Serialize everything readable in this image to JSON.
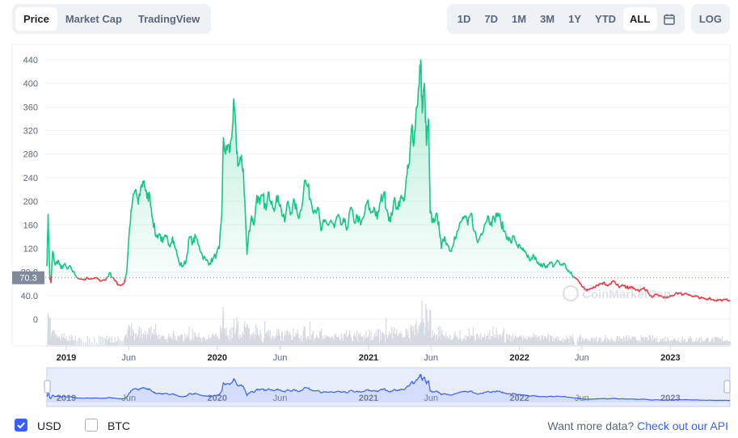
{
  "tabs": {
    "price": "Price",
    "market_cap": "Market Cap",
    "tradingview": "TradingView"
  },
  "ranges": [
    "1D",
    "7D",
    "1M",
    "3M",
    "1Y",
    "YTD",
    "ALL"
  ],
  "active_range": "ALL",
  "calendar_icon": "calendar-icon",
  "log_label": "LOG",
  "watermark": "CoinMarketCap",
  "footer": {
    "usd": "USD",
    "btc": "BTC",
    "more_text": "Want more data?",
    "more_link": "Check out our API"
  },
  "colors": {
    "up": "#16c784",
    "down": "#ea3943",
    "nav": "#3861fb",
    "current_label_bg": "#808a9d"
  },
  "chart_data": {
    "type": "line",
    "current_price_label": "70.3",
    "y_ticks": [
      0,
      40,
      80,
      120,
      160,
      200,
      240,
      280,
      320,
      360,
      400,
      440
    ],
    "y_tick_labels": [
      "0",
      "40.0",
      "80.0",
      "120",
      "160",
      "200",
      "240",
      "280",
      "320",
      "360",
      "400",
      "440"
    ],
    "ylim": [
      0,
      460
    ],
    "x_range": [
      "2018-11-15",
      "2023-05-25"
    ],
    "x_ticks": [
      {
        "date": "2019-01-01",
        "label": "2019",
        "bold": true
      },
      {
        "date": "2019-06-01",
        "label": "Jun",
        "bold": false
      },
      {
        "date": "2020-01-01",
        "label": "2020",
        "bold": true
      },
      {
        "date": "2020-06-01",
        "label": "Jun",
        "bold": false
      },
      {
        "date": "2021-01-01",
        "label": "2021",
        "bold": true
      },
      {
        "date": "2021-06-01",
        "label": "Jun",
        "bold": false
      },
      {
        "date": "2022-01-01",
        "label": "2022",
        "bold": true
      },
      {
        "date": "2022-06-01",
        "label": "Jun",
        "bold": false
      },
      {
        "date": "2023-01-01",
        "label": "2023",
        "bold": true
      }
    ],
    "reference_price": 70.3,
    "series": [
      {
        "points": [
          [
            "2018-11-15",
            90
          ],
          [
            "2018-11-18",
            178
          ],
          [
            "2018-11-22",
            70
          ],
          [
            "2018-11-25",
            62
          ],
          [
            "2018-11-29",
            115
          ],
          [
            "2018-12-05",
            92
          ],
          [
            "2018-12-12",
            100
          ],
          [
            "2018-12-19",
            86
          ],
          [
            "2018-12-27",
            93
          ],
          [
            "2019-01-03",
            85
          ],
          [
            "2019-01-12",
            88
          ],
          [
            "2019-01-22",
            75
          ],
          [
            "2019-02-05",
            68
          ],
          [
            "2019-02-25",
            68
          ],
          [
            "2019-03-20",
            68
          ],
          [
            "2019-04-05",
            66
          ],
          [
            "2019-04-15",
            78
          ],
          [
            "2019-04-25",
            70
          ],
          [
            "2019-05-05",
            58
          ],
          [
            "2019-05-20",
            60
          ],
          [
            "2019-05-27",
            80
          ],
          [
            "2019-06-03",
            155
          ],
          [
            "2019-06-10",
            200
          ],
          [
            "2019-06-18",
            220
          ],
          [
            "2019-06-24",
            195
          ],
          [
            "2019-07-02",
            228
          ],
          [
            "2019-07-08",
            235
          ],
          [
            "2019-07-15",
            205
          ],
          [
            "2019-07-22",
            210
          ],
          [
            "2019-07-29",
            170
          ],
          [
            "2019-08-06",
            140
          ],
          [
            "2019-08-14",
            145
          ],
          [
            "2019-08-22",
            130
          ],
          [
            "2019-08-30",
            140
          ],
          [
            "2019-09-07",
            125
          ],
          [
            "2019-09-15",
            140
          ],
          [
            "2019-09-22",
            120
          ],
          [
            "2019-10-01",
            95
          ],
          [
            "2019-10-10",
            90
          ],
          [
            "2019-10-18",
            100
          ],
          [
            "2019-10-26",
            140
          ],
          [
            "2019-11-03",
            130
          ],
          [
            "2019-11-10",
            140
          ],
          [
            "2019-11-18",
            125
          ],
          [
            "2019-11-26",
            108
          ],
          [
            "2019-12-05",
            100
          ],
          [
            "2019-12-14",
            95
          ],
          [
            "2019-12-22",
            103
          ],
          [
            "2019-12-30",
            110
          ],
          [
            "2020-01-06",
            120
          ],
          [
            "2020-01-12",
            180
          ],
          [
            "2020-01-16",
            308
          ],
          [
            "2020-01-21",
            280
          ],
          [
            "2020-01-26",
            295
          ],
          [
            "2020-02-01",
            285
          ],
          [
            "2020-02-07",
            330
          ],
          [
            "2020-02-11",
            365
          ],
          [
            "2020-02-16",
            300
          ],
          [
            "2020-02-21",
            260
          ],
          [
            "2020-02-27",
            270
          ],
          [
            "2020-03-04",
            255
          ],
          [
            "2020-03-09",
            180
          ],
          [
            "2020-03-13",
            110
          ],
          [
            "2020-03-18",
            150
          ],
          [
            "2020-03-24",
            175
          ],
          [
            "2020-03-30",
            160
          ],
          [
            "2020-04-06",
            210
          ],
          [
            "2020-04-13",
            195
          ],
          [
            "2020-04-20",
            210
          ],
          [
            "2020-04-28",
            185
          ],
          [
            "2020-05-05",
            215
          ],
          [
            "2020-05-12",
            200
          ],
          [
            "2020-05-20",
            190
          ],
          [
            "2020-05-27",
            210
          ],
          [
            "2020-06-04",
            185
          ],
          [
            "2020-06-12",
            165
          ],
          [
            "2020-06-20",
            200
          ],
          [
            "2020-06-28",
            180
          ],
          [
            "2020-07-06",
            200
          ],
          [
            "2020-07-14",
            175
          ],
          [
            "2020-07-22",
            185
          ],
          [
            "2020-07-30",
            235
          ],
          [
            "2020-08-07",
            225
          ],
          [
            "2020-08-15",
            200
          ],
          [
            "2020-08-23",
            185
          ],
          [
            "2020-08-31",
            190
          ],
          [
            "2020-09-08",
            150
          ],
          [
            "2020-09-16",
            165
          ],
          [
            "2020-09-24",
            160
          ],
          [
            "2020-10-02",
            168
          ],
          [
            "2020-10-10",
            155
          ],
          [
            "2020-10-18",
            175
          ],
          [
            "2020-10-26",
            160
          ],
          [
            "2020-11-03",
            165
          ],
          [
            "2020-11-11",
            155
          ],
          [
            "2020-11-19",
            190
          ],
          [
            "2020-11-27",
            165
          ],
          [
            "2020-12-05",
            175
          ],
          [
            "2020-12-13",
            160
          ],
          [
            "2020-12-21",
            175
          ],
          [
            "2020-12-29",
            200
          ],
          [
            "2021-01-06",
            180
          ],
          [
            "2021-01-14",
            190
          ],
          [
            "2021-01-22",
            170
          ],
          [
            "2021-01-30",
            200
          ],
          [
            "2021-02-07",
            215
          ],
          [
            "2021-02-15",
            185
          ],
          [
            "2021-02-23",
            165
          ],
          [
            "2021-03-03",
            200
          ],
          [
            "2021-03-11",
            190
          ],
          [
            "2021-03-19",
            205
          ],
          [
            "2021-03-27",
            200
          ],
          [
            "2021-04-04",
            245
          ],
          [
            "2021-04-10",
            265
          ],
          [
            "2021-04-16",
            330
          ],
          [
            "2021-04-21",
            300
          ],
          [
            "2021-04-27",
            360
          ],
          [
            "2021-05-03",
            395
          ],
          [
            "2021-05-07",
            440
          ],
          [
            "2021-05-11",
            350
          ],
          [
            "2021-05-16",
            400
          ],
          [
            "2021-05-21",
            295
          ],
          [
            "2021-05-26",
            340
          ],
          [
            "2021-05-30",
            180
          ],
          [
            "2021-06-05",
            165
          ],
          [
            "2021-06-12",
            175
          ],
          [
            "2021-06-20",
            165
          ],
          [
            "2021-06-26",
            120
          ],
          [
            "2021-07-04",
            140
          ],
          [
            "2021-07-12",
            125
          ],
          [
            "2021-07-20",
            115
          ],
          [
            "2021-07-28",
            140
          ],
          [
            "2021-08-05",
            150
          ],
          [
            "2021-08-13",
            165
          ],
          [
            "2021-08-21",
            175
          ],
          [
            "2021-08-29",
            160
          ],
          [
            "2021-09-06",
            180
          ],
          [
            "2021-09-14",
            150
          ],
          [
            "2021-09-22",
            130
          ],
          [
            "2021-09-30",
            145
          ],
          [
            "2021-10-08",
            160
          ],
          [
            "2021-10-16",
            175
          ],
          [
            "2021-10-24",
            165
          ],
          [
            "2021-11-01",
            170
          ],
          [
            "2021-11-09",
            180
          ],
          [
            "2021-11-17",
            165
          ],
          [
            "2021-11-25",
            150
          ],
          [
            "2021-12-03",
            140
          ],
          [
            "2021-12-11",
            130
          ],
          [
            "2021-12-19",
            140
          ],
          [
            "2021-12-27",
            125
          ],
          [
            "2022-01-04",
            120
          ],
          [
            "2022-01-12",
            115
          ],
          [
            "2022-01-20",
            105
          ],
          [
            "2022-01-28",
            100
          ],
          [
            "2022-02-05",
            108
          ],
          [
            "2022-02-13",
            95
          ],
          [
            "2022-02-21",
            90
          ],
          [
            "2022-03-01",
            95
          ],
          [
            "2022-03-09",
            88
          ],
          [
            "2022-03-17",
            95
          ],
          [
            "2022-03-25",
            90
          ],
          [
            "2022-04-02",
            100
          ],
          [
            "2022-04-10",
            92
          ],
          [
            "2022-04-18",
            95
          ],
          [
            "2022-04-26",
            85
          ],
          [
            "2022-05-04",
            78
          ],
          [
            "2022-05-12",
            72
          ]
        ]
      },
      {
        "points": [
          [
            "2022-05-20",
            68
          ],
          [
            "2022-05-28",
            60
          ],
          [
            "2022-06-05",
            55
          ],
          [
            "2022-06-13",
            48
          ],
          [
            "2022-06-21",
            52
          ],
          [
            "2022-06-29",
            55
          ],
          [
            "2022-07-07",
            58
          ],
          [
            "2022-07-15",
            60
          ],
          [
            "2022-07-23",
            62
          ],
          [
            "2022-07-31",
            58
          ],
          [
            "2022-08-08",
            60
          ],
          [
            "2022-08-16",
            65
          ],
          [
            "2022-08-24",
            58
          ],
          [
            "2022-09-01",
            55
          ],
          [
            "2022-09-09",
            57
          ],
          [
            "2022-09-17",
            53
          ],
          [
            "2022-09-25",
            55
          ],
          [
            "2022-10-03",
            52
          ],
          [
            "2022-10-11",
            50
          ],
          [
            "2022-10-19",
            48
          ],
          [
            "2022-10-27",
            52
          ],
          [
            "2022-11-04",
            50
          ],
          [
            "2022-11-12",
            40
          ],
          [
            "2022-11-20",
            38
          ],
          [
            "2022-11-28",
            42
          ],
          [
            "2022-12-06",
            40
          ],
          [
            "2022-12-14",
            38
          ],
          [
            "2022-12-22",
            36
          ],
          [
            "2022-12-30",
            38
          ],
          [
            "2023-01-07",
            40
          ],
          [
            "2023-01-15",
            45
          ],
          [
            "2023-01-23",
            44
          ],
          [
            "2023-01-31",
            42
          ],
          [
            "2023-02-08",
            44
          ],
          [
            "2023-02-16",
            42
          ],
          [
            "2023-02-24",
            38
          ],
          [
            "2023-03-04",
            40
          ],
          [
            "2023-03-12",
            35
          ],
          [
            "2023-03-20",
            36
          ],
          [
            "2023-03-28",
            34
          ],
          [
            "2023-04-05",
            36
          ],
          [
            "2023-04-13",
            33
          ],
          [
            "2023-04-21",
            32
          ],
          [
            "2023-04-29",
            33
          ],
          [
            "2023-05-07",
            32
          ],
          [
            "2023-05-15",
            33
          ],
          [
            "2023-05-25",
            32
          ]
        ]
      }
    ]
  }
}
